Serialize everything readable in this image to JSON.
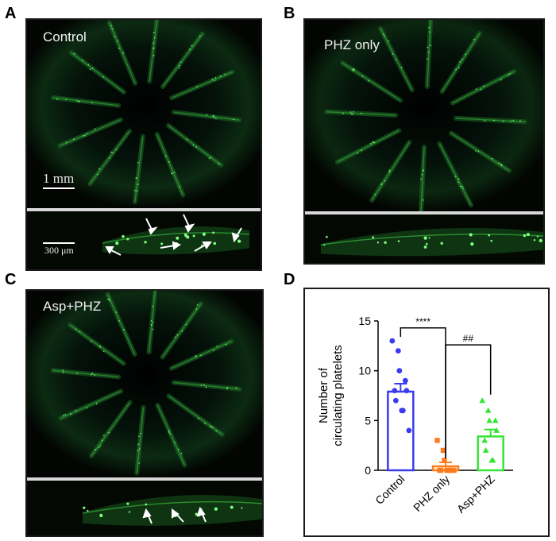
{
  "panels": {
    "A": {
      "letter": "A",
      "caption": "Control",
      "scale_main": "1 mm",
      "scale_strip": "300 μm"
    },
    "B": {
      "letter": "B",
      "caption": "PHZ only"
    },
    "C": {
      "letter": "C",
      "caption": "Asp+PHZ"
    },
    "D": {
      "letter": "D"
    }
  },
  "colors": {
    "background": "#000000",
    "fluorescence": "#39d23a",
    "arrow": "#ffffff",
    "control": "#3a3af0",
    "phz_only": "#ff7a1a",
    "asp_phz": "#33e633"
  },
  "icons": [
    "white-arrow-icon"
  ],
  "chart_data": {
    "type": "bar",
    "ylabel": "Number of circulating platelets",
    "ylim": [
      0,
      15
    ],
    "yticks": [
      0,
      5,
      10,
      15
    ],
    "categories": [
      "Control",
      "PHZ only",
      "Asp+PHZ"
    ],
    "values": [
      7.9,
      0.4,
      3.4
    ],
    "errors": [
      0.8,
      0.4,
      0.7
    ],
    "points": [
      [
        13,
        12,
        10,
        9,
        8,
        8,
        7,
        6,
        6,
        4
      ],
      [
        3,
        2,
        1,
        0,
        0,
        0,
        0,
        0,
        0,
        0
      ],
      [
        7,
        6,
        5,
        5,
        4,
        3,
        2,
        1,
        1
      ]
    ],
    "significance": [
      {
        "from": "Control",
        "to": "PHZ only",
        "label": "****"
      },
      {
        "from": "PHZ only",
        "to": "Asp+PHZ",
        "label": "##"
      }
    ]
  }
}
